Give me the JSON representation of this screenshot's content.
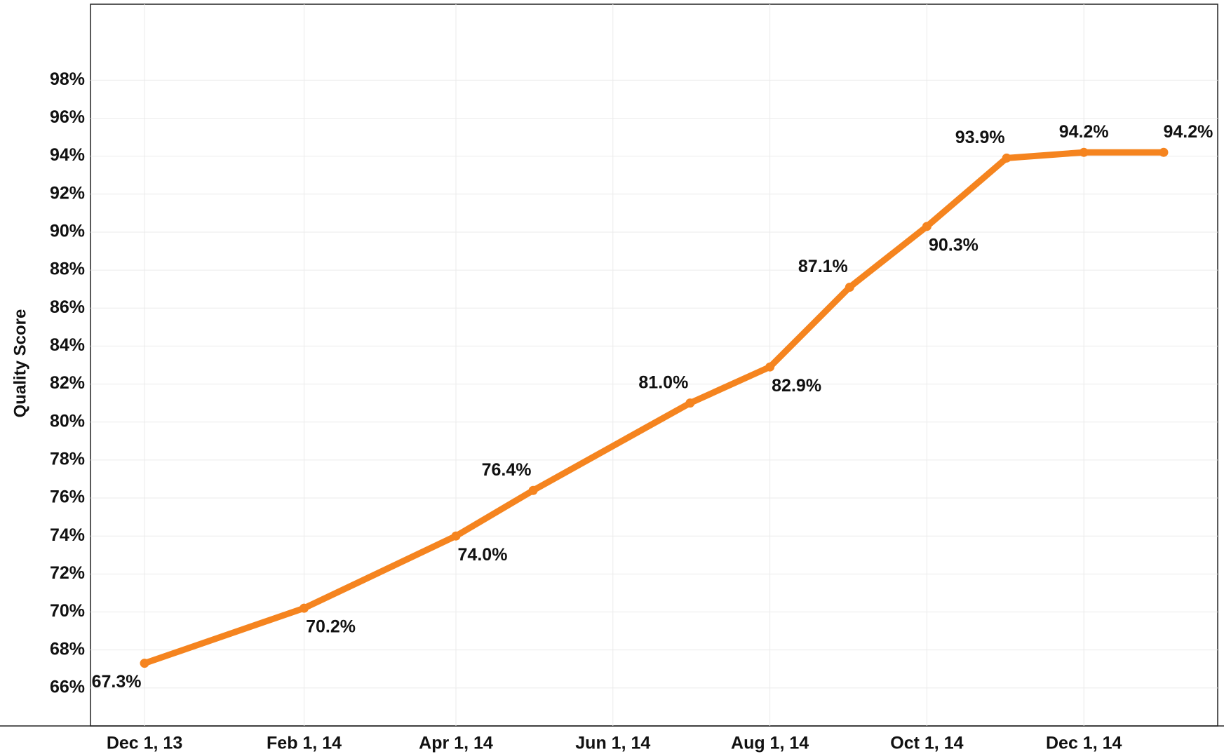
{
  "chart_data": {
    "type": "line",
    "y_axis_label": "Quality Score",
    "x": [
      "2013-12-01",
      "2014-02-01",
      "2014-04-01",
      "2014-05-01",
      "2014-07-01",
      "2014-08-01",
      "2014-09-01",
      "2014-10-01",
      "2014-11-01",
      "2014-12-01",
      "2015-01-01"
    ],
    "series": [
      {
        "name": "Quality Score",
        "color": "#f5841f",
        "values": [
          67.3,
          70.2,
          74.0,
          76.4,
          81.0,
          82.9,
          87.1,
          90.3,
          93.9,
          94.2,
          94.2
        ],
        "value_labels": [
          "67.3%",
          "70.2%",
          "74.0%",
          "76.4%",
          "81.0%",
          "82.9%",
          "87.1%",
          "90.3%",
          "93.9%",
          "94.2%",
          "94.2%"
        ]
      }
    ],
    "xlim": [
      "2013-11-10",
      "2015-01-22"
    ],
    "xticks": [
      {
        "value": "2013-12-01",
        "label": "Dec 1, 13"
      },
      {
        "value": "2014-02-01",
        "label": "Feb 1, 14"
      },
      {
        "value": "2014-04-01",
        "label": "Apr 1, 14"
      },
      {
        "value": "2014-06-01",
        "label": "Jun 1, 14"
      },
      {
        "value": "2014-08-01",
        "label": "Aug 1, 14"
      },
      {
        "value": "2014-10-01",
        "label": "Oct 1, 14"
      },
      {
        "value": "2014-12-01",
        "label": "Dec 1, 14"
      }
    ],
    "ylim": [
      64,
      102
    ],
    "yticks": [
      {
        "value": 66,
        "label": "66%"
      },
      {
        "value": 68,
        "label": "68%"
      },
      {
        "value": 70,
        "label": "70%"
      },
      {
        "value": 72,
        "label": "72%"
      },
      {
        "value": 74,
        "label": "74%"
      },
      {
        "value": 76,
        "label": "76%"
      },
      {
        "value": 78,
        "label": "78%"
      },
      {
        "value": 80,
        "label": "80%"
      },
      {
        "value": 82,
        "label": "82%"
      },
      {
        "value": 84,
        "label": "84%"
      },
      {
        "value": 86,
        "label": "86%"
      },
      {
        "value": 88,
        "label": "88%"
      },
      {
        "value": 90,
        "label": "90%"
      },
      {
        "value": 92,
        "label": "92%"
      },
      {
        "value": 94,
        "label": "94%"
      },
      {
        "value": 96,
        "label": "96%"
      },
      {
        "value": 98,
        "label": "98%"
      }
    ],
    "grid": true
  }
}
